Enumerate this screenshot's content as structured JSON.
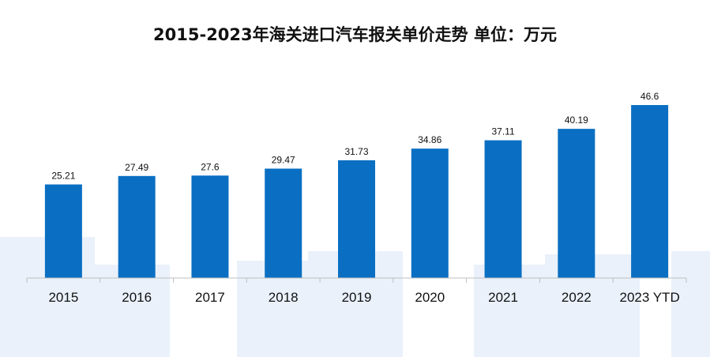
{
  "chart_data": {
    "type": "bar",
    "title": "2015-2023年海关进口汽车报关单价走势  单位：万元",
    "categories": [
      "2015",
      "2016",
      "2017",
      "2018",
      "2019",
      "2020",
      "2021",
      "2022",
      "2023 YTD"
    ],
    "values": [
      25.21,
      27.49,
      27.6,
      29.47,
      31.73,
      34.86,
      37.11,
      40.19,
      46.6
    ],
    "value_labels": [
      "25.21",
      "27.49",
      "27.6",
      "29.47",
      "31.73",
      "34.86",
      "37.11",
      "40.19",
      "46.6"
    ],
    "ylim": [
      0,
      50
    ],
    "grid": false,
    "bar_color": "#0a6fc2",
    "xlabel": "",
    "ylabel": ""
  }
}
